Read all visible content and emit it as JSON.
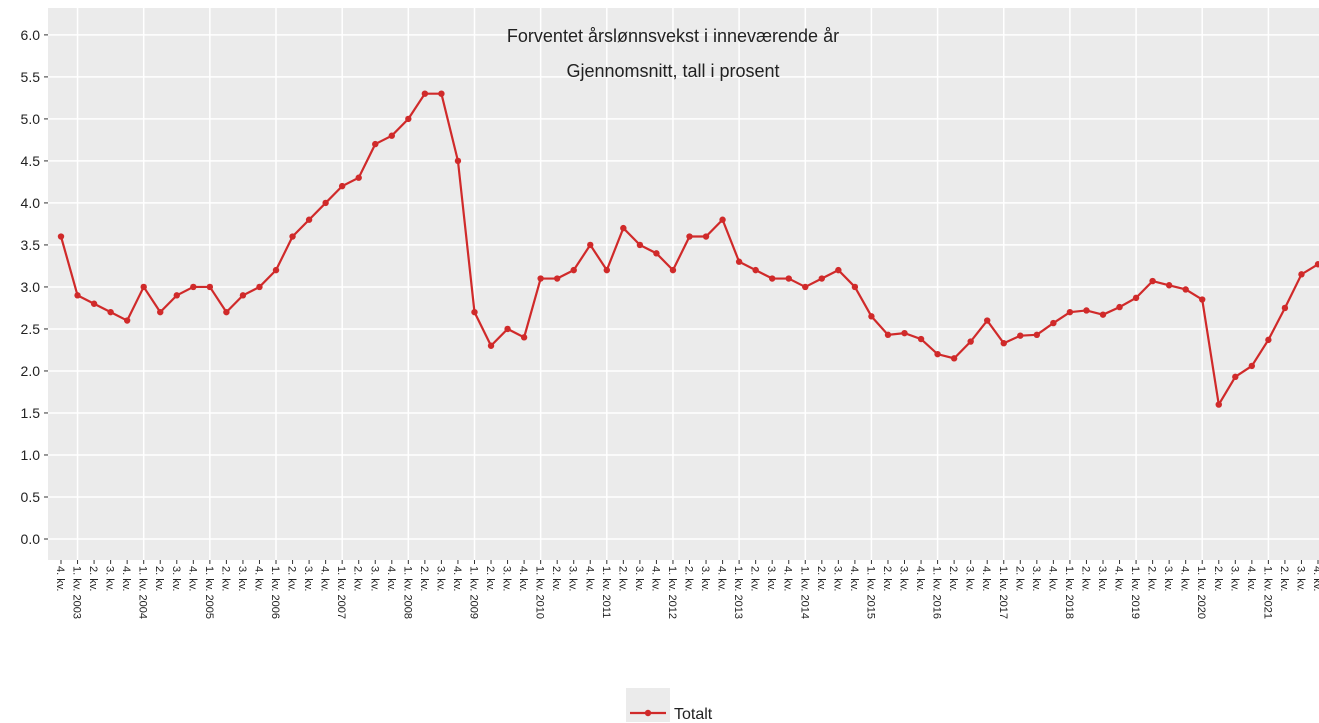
{
  "chart_data": {
    "type": "line",
    "title": "Forventet årslønnsvekst i inneværende år",
    "subtitle": "Gjennomsnitt, tall i prosent",
    "categories": [
      "4. kv.",
      "1. kv. 2003",
      "2. kv.",
      "3. kv.",
      "4. kv.",
      "1. kv. 2004",
      "2. kv.",
      "3. kv.",
      "4. kv.",
      "1. kv. 2005",
      "2. kv.",
      "3. kv.",
      "4. kv.",
      "1. kv. 2006",
      "2. kv.",
      "3. kv.",
      "4. kv.",
      "1. kv. 2007",
      "2. kv.",
      "3. kv.",
      "4. kv.",
      "1. kv. 2008",
      "2. kv.",
      "3. kv.",
      "4. kv.",
      "1. kv. 2009",
      "2. kv.",
      "3. kv.",
      "4. kv.",
      "1. kv. 2010",
      "2. kv.",
      "3. kv.",
      "4. kv.",
      "1. kv. 2011",
      "2. kv.",
      "3. kv.",
      "4. kv.",
      "1. kv. 2012",
      "2. kv.",
      "3. kv.",
      "4. kv.",
      "1. kv. 2013",
      "2. kv.",
      "3. kv.",
      "4. kv.",
      "1. kv. 2014",
      "2. kv.",
      "3. kv.",
      "4. kv.",
      "1. kv. 2015",
      "2. kv.",
      "3. kv.",
      "4. kv.",
      "1. kv. 2016",
      "2. kv.",
      "3. kv.",
      "4. kv.",
      "1. kv. 2017",
      "2. kv.",
      "3. kv.",
      "4. kv.",
      "1. kv. 2018",
      "2. kv.",
      "3. kv.",
      "4. kv.",
      "1. kv. 2019",
      "2. kv.",
      "3. kv.",
      "4. kv.",
      "1. kv. 2020",
      "2. kv.",
      "3. kv.",
      "4. kv.",
      "1. kv. 2021",
      "2. kv.",
      "3. kv.",
      "4. kv."
    ],
    "series": [
      {
        "name": "Totalt",
        "color": "#d02a2a",
        "values": [
          3.6,
          2.9,
          2.8,
          2.7,
          2.6,
          3.0,
          2.7,
          2.9,
          3.0,
          3.0,
          2.7,
          2.9,
          3.0,
          3.2,
          3.6,
          3.8,
          4.0,
          4.2,
          4.3,
          4.7,
          4.8,
          5.0,
          5.3,
          5.3,
          4.5,
          2.7,
          2.3,
          2.5,
          2.4,
          3.1,
          3.1,
          3.2,
          3.5,
          3.2,
          3.7,
          3.5,
          3.4,
          3.2,
          3.6,
          3.6,
          3.8,
          3.3,
          3.2,
          3.1,
          3.1,
          3.0,
          3.1,
          3.2,
          3.0,
          2.65,
          2.43,
          2.45,
          2.38,
          2.2,
          2.15,
          2.35,
          2.6,
          2.33,
          2.42,
          2.43,
          2.57,
          2.7,
          2.72,
          2.67,
          2.76,
          2.87,
          3.07,
          3.02,
          2.97,
          2.85,
          1.6,
          1.93,
          2.06,
          2.37,
          2.75,
          3.15,
          3.27
        ]
      }
    ],
    "ylim": [
      -0.25,
      6.32
    ],
    "yticks": [
      {
        "value": 0,
        "label": "0.0"
      },
      {
        "value": 0.5,
        "label": "0.5"
      },
      {
        "value": 1,
        "label": "1.0"
      },
      {
        "value": 1.5,
        "label": "1.5"
      },
      {
        "value": 2,
        "label": "2.0"
      },
      {
        "value": 2.5,
        "label": "2.5"
      },
      {
        "value": 3,
        "label": "3.0"
      },
      {
        "value": 3.5,
        "label": "3.5"
      },
      {
        "value": 4,
        "label": "4.0"
      },
      {
        "value": 4.5,
        "label": "4.5"
      },
      {
        "value": 5,
        "label": "5.0"
      },
      {
        "value": 5.5,
        "label": "5.5"
      },
      {
        "value": 6,
        "label": "6.0"
      }
    ],
    "grid": true,
    "legend": "bottom"
  }
}
